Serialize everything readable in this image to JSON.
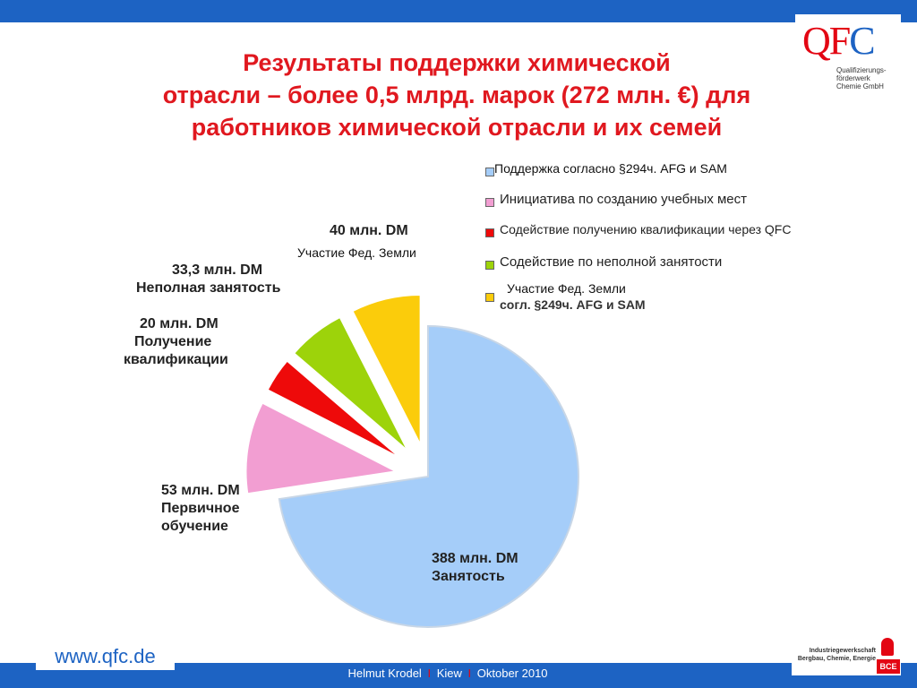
{
  "title": {
    "line1": "Результаты поддержки химической",
    "line2": "отрасли – более 0,5 млрд. марок (272 млн. €) для",
    "line3": "работников химической отрасли и их семей"
  },
  "logo": {
    "mark_q": "Q",
    "mark_f": "F",
    "mark_c": "C",
    "subtitle": "Qualifizierungs-\nförderwerk\nChemie GmbH"
  },
  "chart_data": {
    "type": "pie",
    "title": "",
    "unit": "млн. DM",
    "categories": [
      "Поддержка согласно §294ч. AFG и SAM",
      "Инициатива по созданию учебных мест",
      "Содействие получению квалификации через QFC",
      "Содействие по неполной занятости",
      "Участие Фед. Земли согл. §249ч. AFG и SAM"
    ],
    "values": [
      388,
      53,
      20,
      33.3,
      40
    ],
    "colors": [
      "#a5cdf9",
      "#f29ed2",
      "#ee0a0a",
      "#9dd30a",
      "#fbcc0b"
    ],
    "slice_labels": [
      {
        "value": "388 млн. DM",
        "name": "Занятость"
      },
      {
        "value": "53 млн. DM",
        "name_lines": [
          "Первичное",
          "обучение"
        ]
      },
      {
        "value": "20 млн. DM",
        "name_lines": [
          "Получение",
          "квалификации"
        ]
      },
      {
        "value": "33,3 млн. DM",
        "name": "Неполная занятость"
      },
      {
        "value": "40 млн. DM",
        "name": "Участие Фед. Земли"
      }
    ],
    "legend_position": "top-right",
    "legend_overlay_1": "Поддержка согласно §294ч. AFG и SAM",
    "legend_line_5a": "Участие Фед. Земли",
    "legend_line_5b": "согл. §249ч. AFG и SAM"
  },
  "footer": {
    "url": "www.qfc.de",
    "author": "Helmut Krodel",
    "separator": "I",
    "city": "Kiew",
    "date": "Oktober 2010",
    "ig_text": "Industriegewerkschaft\nBergbau, Chemie, Energie",
    "ig_bce": "BCE"
  }
}
